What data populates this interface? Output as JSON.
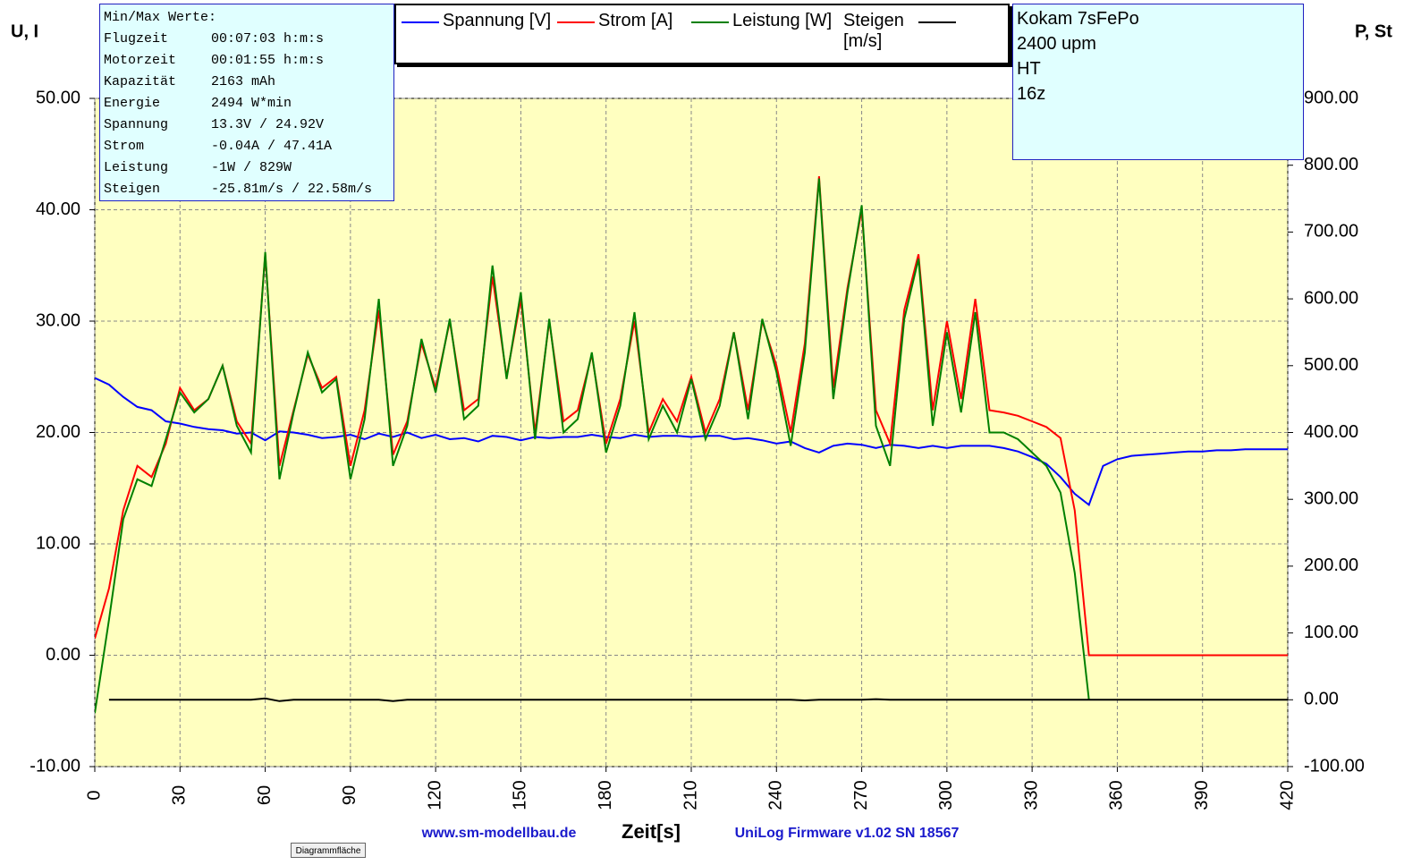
{
  "chart_data": {
    "type": "line",
    "xlabel": "Zeit[s]",
    "ylabel": "U, I",
    "y2label": "P, St",
    "x": [
      0,
      5,
      10,
      15,
      20,
      25,
      30,
      35,
      40,
      45,
      50,
      55,
      60,
      65,
      70,
      75,
      80,
      85,
      90,
      95,
      100,
      105,
      110,
      115,
      120,
      125,
      130,
      135,
      140,
      145,
      150,
      155,
      160,
      165,
      170,
      175,
      180,
      185,
      190,
      195,
      200,
      205,
      210,
      215,
      220,
      225,
      230,
      235,
      240,
      245,
      250,
      255,
      260,
      265,
      270,
      275,
      280,
      285,
      290,
      295,
      300,
      305,
      310,
      315,
      320,
      325,
      330,
      335,
      340,
      345,
      350,
      355,
      360,
      365,
      370,
      375,
      380,
      385,
      390,
      395,
      400,
      405,
      410,
      415,
      420
    ],
    "xlim": [
      0,
      420
    ],
    "xticks": [
      0,
      30,
      60,
      90,
      120,
      150,
      180,
      210,
      240,
      270,
      300,
      330,
      360,
      390,
      420
    ],
    "ylim": [
      -10,
      50
    ],
    "yticks": [
      {
        "value": -10,
        "label": "-10.00"
      },
      {
        "value": 0,
        "label": "0.00"
      },
      {
        "value": 10,
        "label": "10.00"
      },
      {
        "value": 20,
        "label": "20.00"
      },
      {
        "value": 30,
        "label": "30.00"
      },
      {
        "value": 40,
        "label": "40.00"
      },
      {
        "value": 50,
        "label": "50.00"
      }
    ],
    "y2lim": [
      -100,
      900
    ],
    "y2ticks": [
      {
        "value": -100,
        "label": "-100.00"
      },
      {
        "value": 0,
        "label": "0.00"
      },
      {
        "value": 100,
        "label": "100.00"
      },
      {
        "value": 200,
        "label": "200.00"
      },
      {
        "value": 300,
        "label": "300.00"
      },
      {
        "value": 400,
        "label": "400.00"
      },
      {
        "value": 500,
        "label": "500.00"
      },
      {
        "value": 600,
        "label": "600.00"
      },
      {
        "value": 700,
        "label": "700.00"
      },
      {
        "value": 800,
        "label": "800.00"
      },
      {
        "value": 900,
        "label": "900.00"
      }
    ],
    "grid": true,
    "series": [
      {
        "name": "Spannung [V]",
        "color": "#0000ff",
        "axis": "y",
        "values": [
          24.9,
          24.3,
          23.2,
          22.3,
          22.0,
          21.0,
          20.8,
          20.5,
          20.3,
          20.2,
          19.9,
          20.0,
          19.3,
          20.1,
          20.0,
          19.8,
          19.5,
          19.6,
          19.8,
          19.4,
          19.9,
          19.6,
          20.0,
          19.5,
          19.8,
          19.4,
          19.5,
          19.2,
          19.7,
          19.6,
          19.3,
          19.6,
          19.5,
          19.6,
          19.6,
          19.8,
          19.6,
          19.5,
          19.8,
          19.6,
          19.7,
          19.7,
          19.6,
          19.7,
          19.7,
          19.4,
          19.5,
          19.3,
          19.0,
          19.2,
          18.6,
          18.2,
          18.8,
          19.0,
          18.9,
          18.6,
          18.9,
          18.8,
          18.6,
          18.8,
          18.6,
          18.8,
          18.8,
          18.8,
          18.6,
          18.3,
          17.8,
          17.2,
          16.0,
          14.5,
          13.5,
          17.0,
          17.6,
          17.9,
          18.0,
          18.1,
          18.2,
          18.3,
          18.3,
          18.4,
          18.4,
          18.5,
          18.5,
          18.5,
          18.5
        ]
      },
      {
        "name": "Strom [A]",
        "color": "#ff0000",
        "axis": "y",
        "values": [
          1.5,
          6,
          13,
          17,
          16,
          19,
          24,
          22,
          23,
          26,
          21,
          19,
          36,
          17,
          22,
          27,
          24,
          25,
          17,
          22,
          31,
          18,
          21,
          28,
          24,
          30,
          22,
          23,
          34,
          25,
          32,
          20,
          30,
          21,
          22,
          27,
          19,
          23,
          30,
          20,
          23,
          21,
          25,
          20,
          23,
          29,
          22,
          30,
          26,
          20,
          28,
          43,
          24,
          33,
          40,
          22,
          19,
          31,
          36,
          22,
          30,
          23,
          32,
          22,
          21.8,
          21.5,
          21,
          20.5,
          19.5,
          13,
          0,
          0,
          0,
          0,
          0,
          0,
          0,
          0,
          0,
          0,
          0,
          0,
          0,
          0,
          0
        ]
      },
      {
        "name": "Leistung [W]",
        "color": "#008000",
        "axis": "y2",
        "values": [
          -20,
          120,
          270,
          330,
          320,
          390,
          460,
          430,
          450,
          500,
          410,
          370,
          670,
          330,
          430,
          520,
          460,
          480,
          330,
          420,
          600,
          350,
          410,
          540,
          460,
          570,
          420,
          440,
          650,
          480,
          610,
          390,
          570,
          400,
          420,
          520,
          370,
          440,
          580,
          390,
          440,
          400,
          480,
          390,
          440,
          550,
          420,
          570,
          490,
          380,
          520,
          780,
          450,
          610,
          740,
          410,
          350,
          570,
          660,
          410,
          550,
          430,
          580,
          400,
          400,
          390,
          370,
          350,
          310,
          190,
          0,
          null,
          null,
          null,
          null,
          null,
          null,
          null,
          null,
          null,
          null,
          null,
          null,
          null,
          null
        ]
      },
      {
        "name": "Steigen [m/s]",
        "color": "#000000",
        "axis": "y2",
        "values": [
          null,
          0,
          0,
          0,
          0,
          0,
          0,
          0,
          0,
          0,
          0,
          0,
          2,
          -2,
          0,
          0,
          0,
          0,
          0,
          0,
          0,
          -2,
          0,
          0,
          0,
          0,
          0,
          0,
          0,
          0,
          0,
          0,
          0,
          0,
          0,
          0,
          0,
          0,
          0,
          0,
          0,
          0,
          0,
          0,
          0,
          0,
          0,
          0,
          0,
          0,
          -1,
          0,
          0,
          0,
          0,
          1,
          0,
          0,
          0,
          0,
          0,
          0,
          0,
          0,
          0,
          0,
          0,
          0,
          0,
          0,
          0,
          0,
          0,
          0,
          0,
          0,
          0,
          0,
          0,
          0,
          0,
          0,
          0,
          0,
          0
        ]
      }
    ]
  },
  "info_box": {
    "title": "Min/Max Werte:",
    "rows": [
      [
        "Flugzeit",
        "00:07:03 h:m:s"
      ],
      [
        "Motorzeit",
        "00:01:55 h:m:s"
      ],
      [
        "Kapazität",
        "2163 mAh"
      ],
      [
        "Energie",
        "2494 W*min"
      ],
      [
        "Spannung",
        "13.3V / 24.92V"
      ],
      [
        "Strom",
        "-0.04A / 47.41A"
      ],
      [
        "Leistung",
        "-1W / 829W"
      ],
      [
        "Steigen",
        "-25.81m/s / 22.58m/s"
      ]
    ]
  },
  "note_box": {
    "lines": [
      "Kokam 7sFePo",
      "2400 upm",
      "HT",
      "16z"
    ]
  },
  "footer": {
    "left": "www.sm-modellbau.de",
    "right": "UniLog Firmware v1.02 SN 18567"
  },
  "button": "Diagrammfläche"
}
